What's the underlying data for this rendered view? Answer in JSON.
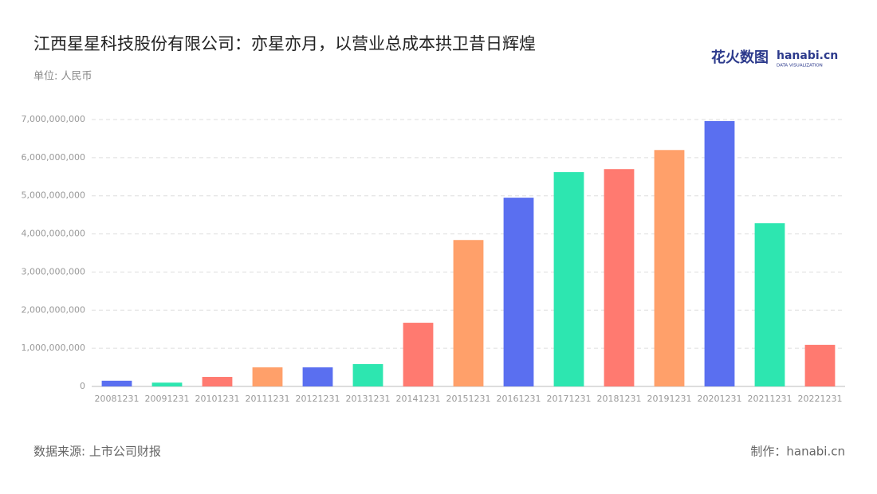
{
  "chart_data": {
    "type": "bar",
    "title": "江西星星科技股份有限公司：亦星亦月，以营业总成本拱卫昔日辉煌",
    "subtitle": "单位: 人民币",
    "source": "数据来源: 上市公司财报",
    "credit": "制作：hanabi.cn",
    "logo": {
      "brand": "花火数图",
      "site": "hanabi.cn",
      "tagline": "DATA VISUALIZATION"
    },
    "categories": [
      "20081231",
      "20091231",
      "20101231",
      "20111231",
      "20121231",
      "20131231",
      "20141231",
      "20151231",
      "20161231",
      "20171231",
      "20181231",
      "20191231",
      "20201231",
      "20211231",
      "20221231"
    ],
    "values": [
      150000000,
      100000000,
      250000000,
      500000000,
      500000000,
      585000000,
      1670000000,
      3840000000,
      4950000000,
      5620000000,
      5700000000,
      6200000000,
      6960000000,
      4280000000,
      1090000000
    ],
    "colors": [
      "#5a6ff0",
      "#2de6b0",
      "#ff7a70",
      "#ffa06a",
      "#5a6ff0",
      "#2de6b0",
      "#ff7a70",
      "#ffa06a",
      "#5a6ff0",
      "#2de6b0",
      "#ff7a70",
      "#ffa06a",
      "#5a6ff0",
      "#2de6b0",
      "#ff7a70"
    ],
    "ylim": [
      0,
      7000000000
    ],
    "yticks": [
      0,
      {
        "value": 1000000000,
        "label": "1,000,000,000"
      },
      {
        "value": 2000000000,
        "label": "2,000,000,000"
      },
      {
        "value": 3000000000,
        "label": "3,000,000,000"
      },
      {
        "value": 4000000000,
        "label": "4,000,000,000"
      },
      {
        "value": 5000000000,
        "label": "5,000,000,000"
      },
      {
        "value": 6000000000,
        "label": "6,000,000,000"
      },
      {
        "value": 7000000000,
        "label": "7,000,000,000"
      }
    ],
    "grid": true
  }
}
